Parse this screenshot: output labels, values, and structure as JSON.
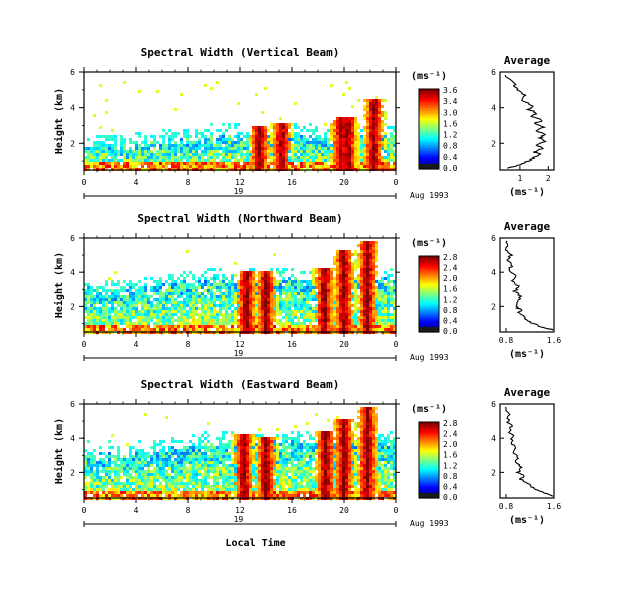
{
  "chart_data": [
    {
      "type": "heatmap",
      "title": "Spectral Width (Vertical Beam)",
      "ylabel": "Height (km)",
      "yticks": [
        "2",
        "4",
        "6"
      ],
      "ylim": [
        0.5,
        6
      ],
      "xticks": [
        "0",
        "4",
        "8",
        "12",
        "16",
        "20",
        "0"
      ],
      "xlim": [
        0,
        24
      ],
      "day_label": "19",
      "date_label": "Aug 1993",
      "colorbar": {
        "unit": "(ms⁻¹)",
        "ticks": [
          "3.6",
          "3.4",
          "3.0",
          "1.6",
          "1.2",
          "0.8",
          "0.4",
          "0.0"
        ]
      },
      "average": {
        "title": "Average",
        "xlabel": "(ms⁻¹)",
        "xticks": [
          "1",
          "2"
        ],
        "yticks": [
          "2",
          "4",
          "6"
        ],
        "xlim": [
          0.3,
          2.2
        ],
        "ylim": [
          0.5,
          6
        ],
        "profile": [
          [
            0.6,
            0.6
          ],
          [
            1.0,
            0.8
          ],
          [
            1.3,
            1.0
          ],
          [
            1.5,
            1.2
          ],
          [
            1.7,
            1.4
          ],
          [
            1.5,
            1.5
          ],
          [
            1.8,
            1.7
          ],
          [
            1.6,
            1.9
          ],
          [
            1.9,
            2.1
          ],
          [
            1.7,
            2.3
          ],
          [
            1.9,
            2.5
          ],
          [
            1.6,
            2.7
          ],
          [
            1.85,
            2.9
          ],
          [
            1.5,
            3.1
          ],
          [
            1.8,
            3.3
          ],
          [
            1.4,
            3.5
          ],
          [
            1.6,
            3.7
          ],
          [
            1.3,
            3.9
          ],
          [
            1.45,
            4.1
          ],
          [
            1.1,
            4.4
          ],
          [
            1.2,
            4.7
          ],
          [
            0.9,
            5.0
          ],
          [
            0.8,
            5.3
          ],
          [
            0.6,
            5.6
          ],
          [
            0.5,
            5.9
          ]
        ]
      },
      "features": {
        "layer_top_km": 1.9,
        "layer_top2_km": 2.2,
        "column_hours": [
          13.5,
          15.2,
          19.8,
          20.3,
          22.3
        ],
        "column_tops_km": [
          3.0,
          3.2,
          3.3,
          3.4,
          4.5
        ]
      }
    },
    {
      "type": "heatmap",
      "title": "Spectral Width (Northward Beam)",
      "ylabel": "Height (km)",
      "yticks": [
        "2",
        "4",
        "6"
      ],
      "ylim": [
        0.5,
        6
      ],
      "xticks": [
        "0",
        "4",
        "8",
        "12",
        "16",
        "20",
        "0"
      ],
      "xlim": [
        0,
        24
      ],
      "day_label": "19",
      "date_label": "Aug 1993",
      "colorbar": {
        "unit": "(ms⁻¹)",
        "ticks": [
          "2.8",
          "2.4",
          "2.0",
          "1.6",
          "1.2",
          "0.8",
          "0.4",
          "0.0"
        ]
      },
      "average": {
        "title": "Average",
        "xlabel": "(ms⁻¹)",
        "xticks": [
          "0.8",
          "1.6"
        ],
        "yticks": [
          "2",
          "4",
          "6"
        ],
        "xlim": [
          0.7,
          1.6
        ],
        "profile": [
          [
            1.6,
            0.6
          ],
          [
            1.4,
            0.8
          ],
          [
            1.25,
            1.0
          ],
          [
            1.15,
            1.2
          ],
          [
            1.1,
            1.4
          ],
          [
            1.0,
            1.6
          ],
          [
            1.05,
            1.8
          ],
          [
            0.95,
            2.0
          ],
          [
            1.0,
            2.3
          ],
          [
            1.05,
            2.6
          ],
          [
            0.95,
            2.9
          ],
          [
            1.0,
            3.2
          ],
          [
            0.9,
            3.5
          ],
          [
            0.95,
            3.8
          ],
          [
            0.85,
            4.1
          ],
          [
            0.9,
            4.4
          ],
          [
            0.82,
            4.7
          ],
          [
            0.88,
            5.0
          ],
          [
            0.8,
            5.3
          ],
          [
            0.85,
            5.6
          ],
          [
            0.8,
            5.9
          ]
        ]
      },
      "features": {
        "layer_top_km": 3.0,
        "layer_top2_km": 3.4,
        "column_hours": [
          12.5,
          14.0,
          18.5,
          20.0,
          21.8
        ],
        "column_tops_km": [
          4.0,
          4.0,
          4.3,
          5.3,
          5.8
        ]
      }
    },
    {
      "type": "heatmap",
      "title": "Spectral Width (Eastward Beam)",
      "xlabel": "Local Time",
      "ylabel": "Height (km)",
      "yticks": [
        "2",
        "4",
        "6"
      ],
      "ylim": [
        0.5,
        6
      ],
      "xticks": [
        "0",
        "4",
        "8",
        "12",
        "16",
        "20",
        "0"
      ],
      "xlim": [
        0,
        24
      ],
      "day_label": "19",
      "date_label": "Aug 1993",
      "colorbar": {
        "unit": "(ms⁻¹)",
        "ticks": [
          "2.8",
          "2.4",
          "2.0",
          "1.6",
          "1.2",
          "0.8",
          "0.4",
          "0.0"
        ]
      },
      "average": {
        "title": "Average",
        "xlabel": "(ms⁻¹)",
        "xticks": [
          "0.8",
          "1.6"
        ],
        "yticks": [
          "2",
          "4",
          "6"
        ],
        "xlim": [
          0.7,
          1.6
        ],
        "profile": [
          [
            1.6,
            0.6
          ],
          [
            1.45,
            0.8
          ],
          [
            1.3,
            1.0
          ],
          [
            1.2,
            1.2
          ],
          [
            1.15,
            1.4
          ],
          [
            1.05,
            1.6
          ],
          [
            1.1,
            1.8
          ],
          [
            1.0,
            2.0
          ],
          [
            1.05,
            2.3
          ],
          [
            0.95,
            2.6
          ],
          [
            1.0,
            2.9
          ],
          [
            0.9,
            3.2
          ],
          [
            0.95,
            3.5
          ],
          [
            0.88,
            3.8
          ],
          [
            0.92,
            4.1
          ],
          [
            0.85,
            4.4
          ],
          [
            0.9,
            4.7
          ],
          [
            0.82,
            5.0
          ],
          [
            0.86,
            5.3
          ],
          [
            0.8,
            5.6
          ],
          [
            0.82,
            5.9
          ]
        ]
      },
      "features": {
        "layer_top_km": 3.0,
        "layer_top2_km": 3.6,
        "column_hours": [
          12.3,
          14.0,
          18.6,
          20.0,
          21.8
        ],
        "column_tops_km": [
          4.2,
          4.0,
          4.5,
          5.2,
          5.8
        ]
      }
    }
  ]
}
